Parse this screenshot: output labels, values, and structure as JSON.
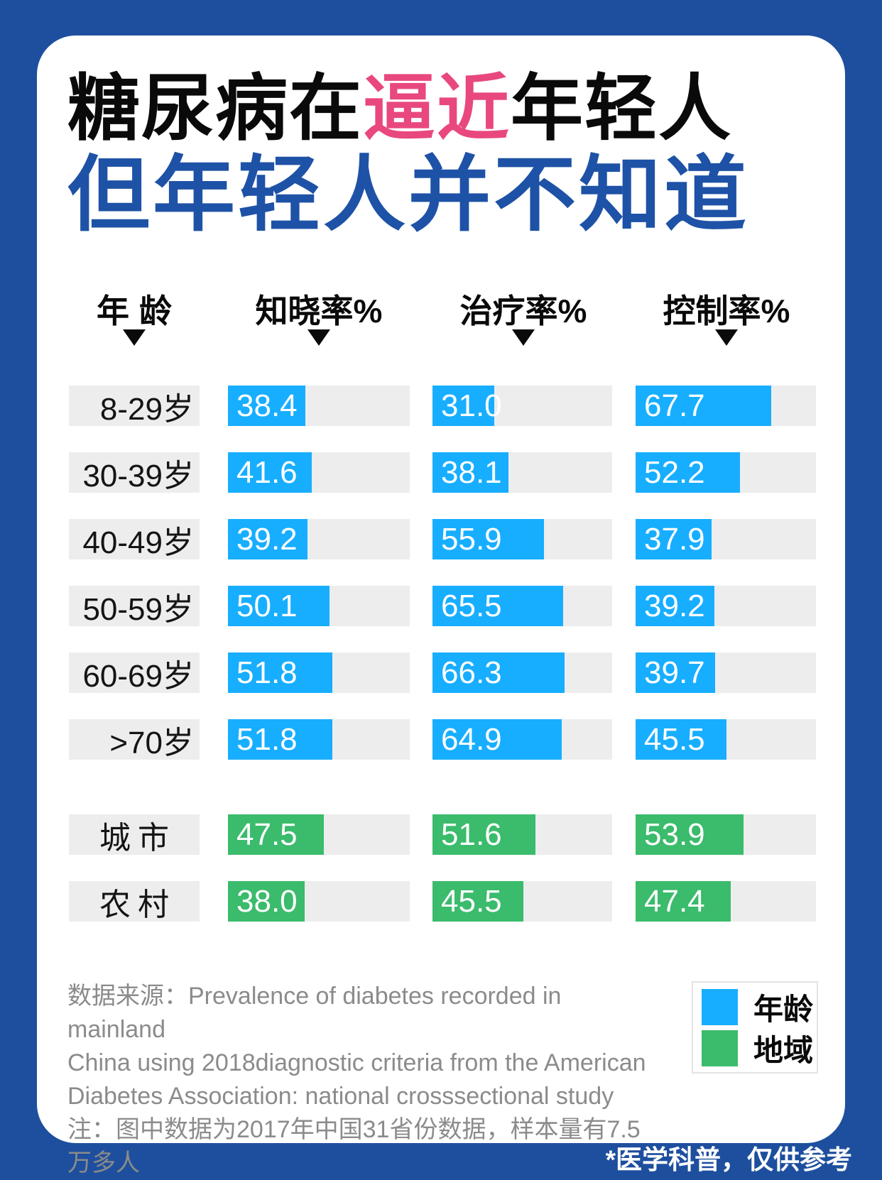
{
  "title": {
    "line1_part1": "糖尿病在",
    "line1_highlight": "逼近",
    "line1_part2": "年轻人",
    "line2": "但年轻人并不知道"
  },
  "colors": {
    "frame_blue": "#1e4f9e",
    "title_blue": "#1e52a6",
    "highlight_pink": "#e8487e",
    "bar_blue": "#18aeff",
    "bar_green": "#3bbb6c",
    "track_gray": "#ededed"
  },
  "chart_data": {
    "type": "bar",
    "row_header": "年龄",
    "columns": [
      "知晓率%",
      "治疗率%",
      "控制率%"
    ],
    "scale_max": 90,
    "groups": [
      {
        "name": "年龄",
        "color": "#18aeff",
        "rows": [
          {
            "label": "8-29岁",
            "values": [
              "38.4",
              "31.0",
              "67.7"
            ]
          },
          {
            "label": "30-39岁",
            "values": [
              "41.6",
              "38.1",
              "52.2"
            ]
          },
          {
            "label": "40-49岁",
            "values": [
              "39.2",
              "55.9",
              "37.9"
            ]
          },
          {
            "label": "50-59岁",
            "values": [
              "50.1",
              "65.5",
              "39.2"
            ]
          },
          {
            "label": "60-69岁",
            "values": [
              "51.8",
              "66.3",
              "39.7"
            ]
          },
          {
            "label": ">70岁",
            "values": [
              "51.8",
              "64.9",
              "45.5"
            ]
          }
        ]
      },
      {
        "name": "地域",
        "color": "#3bbb6c",
        "rows": [
          {
            "label": "城市",
            "values": [
              "47.5",
              "51.6",
              "53.9"
            ]
          },
          {
            "label": "农村",
            "values": [
              "38.0",
              "45.5",
              "47.4"
            ]
          }
        ]
      }
    ]
  },
  "legend": {
    "items": [
      {
        "label": "年龄",
        "color": "#18aeff"
      },
      {
        "label": "地域",
        "color": "#3bbb6c"
      }
    ]
  },
  "footer": {
    "source_note": "数据来源：Prevalence of diabetes recorded in mainland\nChina using 2018diagnostic criteria from the American\nDiabetes Association: national crosssectional study\n注：图中数据为2017年中国31省份数据，样本量有7.5万多人"
  },
  "badge": "*医学科普，仅供参考"
}
